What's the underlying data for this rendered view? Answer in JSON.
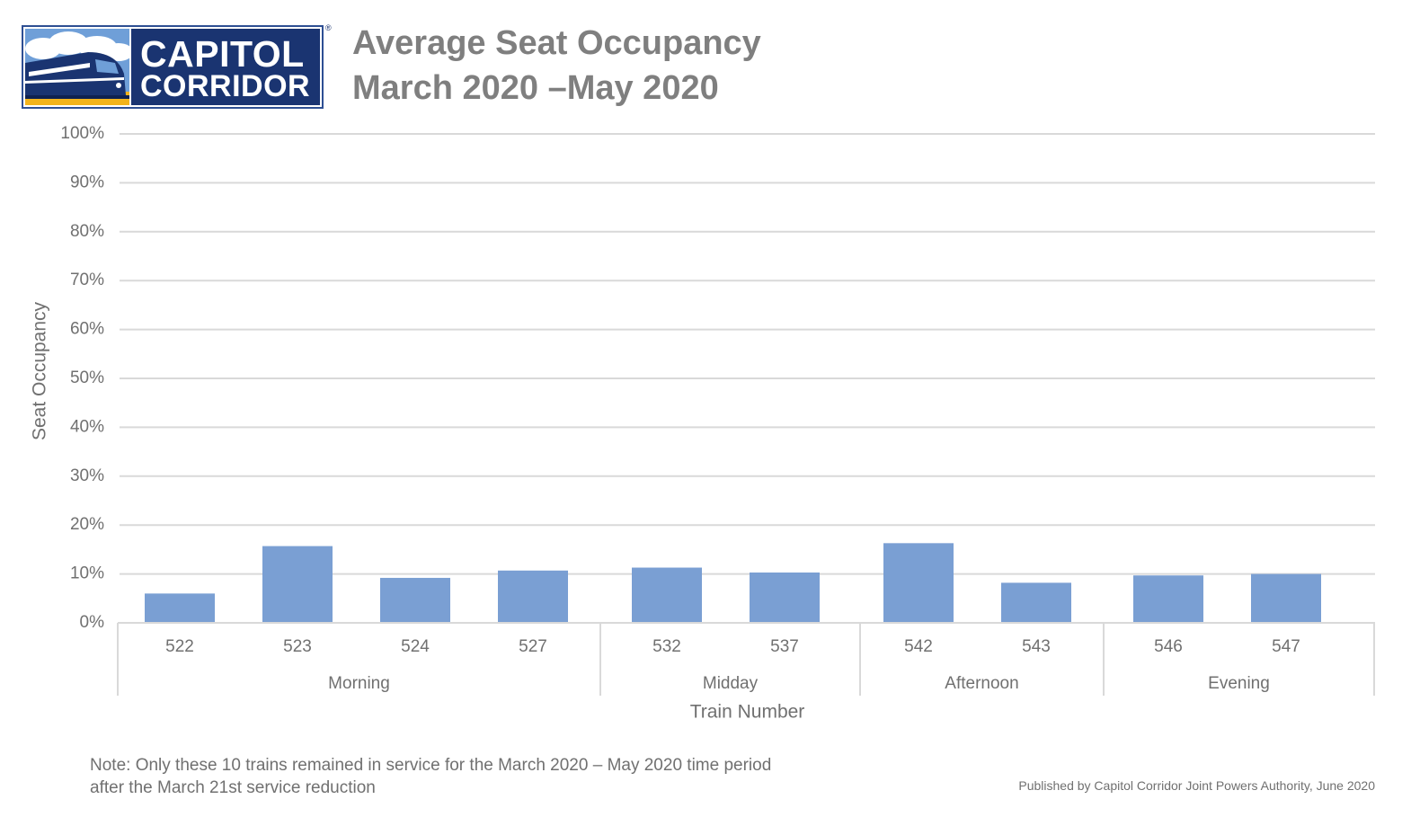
{
  "logo": {
    "line1": "CAPITOL",
    "line2": "CORRIDOR",
    "registered": "®",
    "colors": {
      "navy": "#1a3471",
      "sky": "#6f9fd8",
      "gold": "#f2b31c"
    },
    "icon": "train-icon"
  },
  "title": {
    "line1": "Average Seat Occupancy",
    "line2": "March 2020 –May 2020"
  },
  "chart_data": {
    "type": "bar",
    "categories": [
      "522",
      "523",
      "524",
      "527",
      "532",
      "537",
      "542",
      "543",
      "546",
      "547"
    ],
    "values": [
      6,
      15.7,
      9.2,
      10.7,
      11.3,
      10.3,
      16.3,
      8.2,
      9.7,
      10
    ],
    "groups": [
      {
        "label": "Morning",
        "trains": [
          "522",
          "523",
          "524",
          "527"
        ]
      },
      {
        "label": "Midday",
        "trains": [
          "532",
          "537"
        ]
      },
      {
        "label": "Afternoon",
        "trains": [
          "542",
          "543"
        ]
      },
      {
        "label": "Evening",
        "trains": [
          "546",
          "547"
        ]
      }
    ],
    "yticks": [
      "0%",
      "10%",
      "20%",
      "30%",
      "40%",
      "50%",
      "60%",
      "70%",
      "80%",
      "90%",
      "100%"
    ],
    "ylim": [
      0,
      100
    ],
    "ylabel": "Seat Occupancy",
    "xlabel": "Train Number",
    "grid": true,
    "bar_color": "#7a9fd3",
    "grid_color": "#d9d9d9",
    "text_color": "#707070"
  },
  "notes": {
    "line1": "Note: Only these 10 trains remained in service for the March 2020 – May 2020 time period",
    "line2": "after the March 21st service reduction",
    "publisher": "Published by Capitol Corridor Joint Powers Authority, June 2020"
  }
}
